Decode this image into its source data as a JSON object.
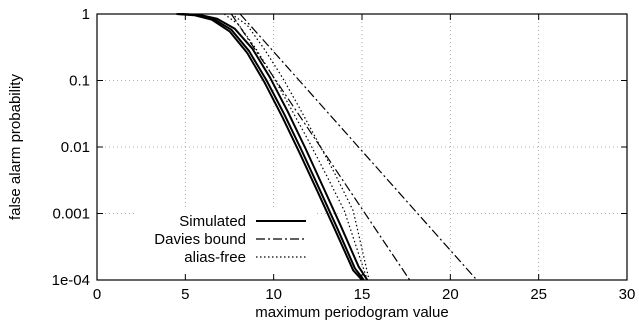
{
  "chart_data": {
    "type": "line",
    "title": "",
    "xlabel": "maximum periodogram value",
    "ylabel": "false alarm probability",
    "xlim": [
      0,
      30
    ],
    "ylim": [
      0.0001,
      1
    ],
    "yscale": "log",
    "x_ticks": [
      0,
      5,
      10,
      15,
      20,
      25,
      30
    ],
    "x_tick_labels": [
      "0",
      "5",
      "10",
      "15",
      "20",
      "25",
      "30"
    ],
    "y_ticks": [
      0.0001,
      0.001,
      0.01,
      0.1,
      1
    ],
    "y_tick_labels": [
      "1e-04",
      "0.001",
      "0.01",
      "0.1",
      "1"
    ],
    "grid": true,
    "legend_position": "bottom-left",
    "legend": [
      {
        "label": "Simulated",
        "style": "solid"
      },
      {
        "label": "Davies bound",
        "style": "dash-dot"
      },
      {
        "label": "alias-free",
        "style": "dotted"
      }
    ],
    "series": [
      {
        "style": "solid",
        "x": [
          4.5,
          5.5,
          6.5,
          7.5,
          8.5,
          9.5,
          10.5,
          11.5,
          12.5,
          13.5,
          14.5,
          15.0
        ],
        "y": [
          1,
          0.96,
          0.82,
          0.55,
          0.26,
          0.092,
          0.028,
          0.0078,
          0.0021,
          0.00055,
          0.00014,
          0.0001
        ]
      },
      {
        "style": "solid",
        "x": [
          4.6,
          5.6,
          6.6,
          7.6,
          8.6,
          9.6,
          10.6,
          11.6,
          12.6,
          13.6,
          14.6,
          15.1
        ],
        "y": [
          1,
          0.97,
          0.84,
          0.58,
          0.28,
          0.1,
          0.031,
          0.0087,
          0.0023,
          0.0006,
          0.00015,
          0.0001
        ]
      },
      {
        "style": "solid",
        "x": [
          4.8,
          5.8,
          6.8,
          7.8,
          8.8,
          9.8,
          10.8,
          11.8,
          12.8,
          13.8,
          14.8,
          15.3
        ],
        "y": [
          1,
          0.97,
          0.85,
          0.6,
          0.3,
          0.11,
          0.034,
          0.0095,
          0.0025,
          0.00065,
          0.00016,
          0.0001
        ]
      },
      {
        "style": "dotted",
        "x": [
          7.2,
          8,
          9,
          10,
          11,
          12,
          13,
          14,
          15.3
        ],
        "y": [
          1,
          0.7,
          0.3,
          0.11,
          0.037,
          0.012,
          0.0037,
          0.0011,
          0.0001
        ]
      },
      {
        "style": "dotted",
        "x": [
          7.6,
          8.5,
          9.5,
          10.5,
          11.5,
          12.5,
          13.5,
          14.5,
          15.4
        ],
        "y": [
          1,
          0.68,
          0.29,
          0.11,
          0.037,
          0.012,
          0.0038,
          0.0011,
          0.0001
        ]
      },
      {
        "style": "dash-dot",
        "x": [
          7.6,
          17.7
        ],
        "y": [
          1,
          0.0001
        ]
      },
      {
        "style": "dash-dot",
        "x": [
          8.1,
          21.5
        ],
        "y": [
          1,
          0.0001
        ]
      }
    ]
  }
}
